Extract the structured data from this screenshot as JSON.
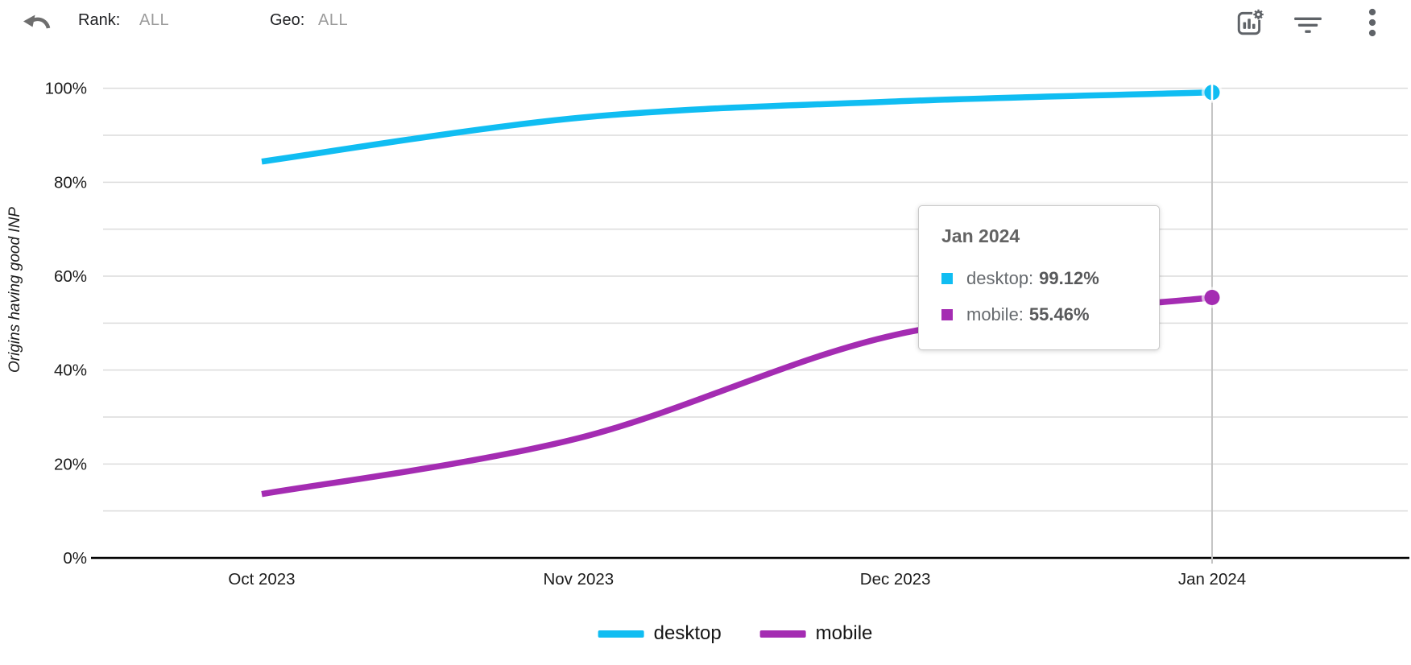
{
  "header": {
    "rank_label": "Rank:",
    "rank_value": "ALL",
    "geo_label": "Geo:",
    "geo_value": "ALL"
  },
  "toolbar": {
    "icons": [
      "undo-icon",
      "chart-settings-icon",
      "filter-icon",
      "kebab-menu-icon"
    ]
  },
  "chart_data": {
    "type": "line",
    "title": "",
    "xlabel": "",
    "ylabel": "Origins having good INP",
    "categories": [
      "Oct 2023",
      "Nov 2023",
      "Dec 2023",
      "Jan 2024"
    ],
    "series": [
      {
        "name": "desktop",
        "color": "#10BDF2",
        "values": [
          84.4,
          93.7,
          97.2,
          99.12
        ]
      },
      {
        "name": "mobile",
        "color": "#A42CB2",
        "values": [
          13.6,
          25.5,
          47.5,
          55.46
        ]
      }
    ],
    "ylim": [
      0,
      100
    ],
    "ytick_step": 20,
    "ytick_labels": [
      "0%",
      "20%",
      "40%",
      "60%",
      "80%",
      "100%"
    ],
    "gridline_step": 10,
    "grid": true,
    "legend_position": "bottom",
    "highlight": {
      "category": "Jan 2024",
      "index": 3
    }
  },
  "tooltip": {
    "title": "Jan 2024",
    "rows": [
      {
        "label": "desktop:",
        "value": "99.12%",
        "color": "#10BDF2"
      },
      {
        "label": "mobile:",
        "value": "55.46%",
        "color": "#A42CB2"
      }
    ]
  },
  "colors": {
    "desktop": "#10BDF2",
    "mobile": "#A42CB2",
    "gridline": "#dcdcdc",
    "axis": "#000000",
    "crosshair": "#c4c4c4",
    "tick_text": "#1c1c1c",
    "icon_gray": "#5f6368",
    "muted_value": "#9b9b9b"
  }
}
